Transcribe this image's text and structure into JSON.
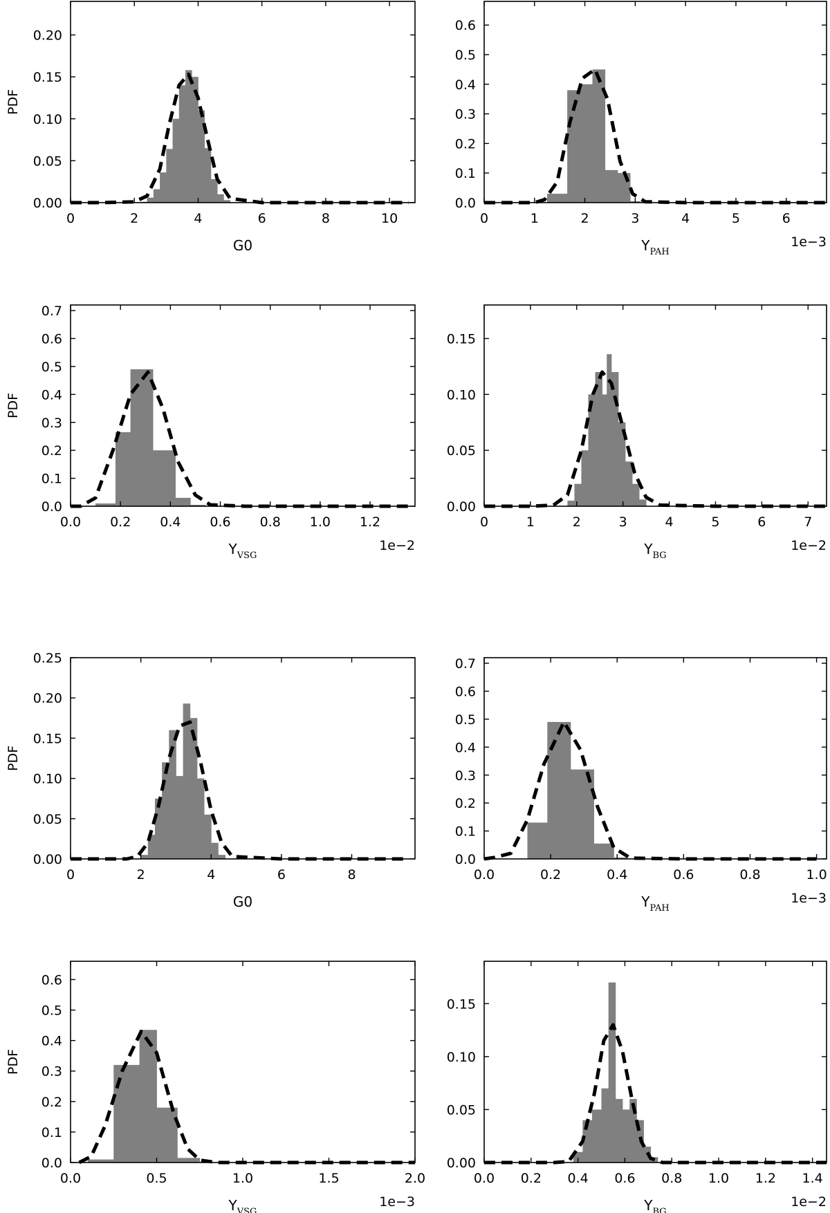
{
  "chart_data": [
    {
      "type": "histogram",
      "xlabel": "G0",
      "xlabel_sub": "",
      "ylabel": "PDF",
      "multiplier": "",
      "xlim": [
        0,
        10.8
      ],
      "ylim": [
        0,
        0.24
      ],
      "xticks": [
        0,
        2,
        4,
        6,
        8,
        10
      ],
      "xtick_labels": [
        "0",
        "2",
        "4",
        "6",
        "8",
        "10"
      ],
      "yticks": [
        0,
        0.05,
        0.1,
        0.15,
        0.2
      ],
      "ytick_labels": [
        "0.00",
        "0.05",
        "0.10",
        "0.15",
        "0.20"
      ],
      "bins": [
        [
          2.2,
          2.4,
          0.001
        ],
        [
          2.4,
          2.6,
          0.006
        ],
        [
          2.6,
          2.8,
          0.016
        ],
        [
          2.8,
          3.0,
          0.036
        ],
        [
          3.0,
          3.2,
          0.064
        ],
        [
          3.2,
          3.4,
          0.1
        ],
        [
          3.4,
          3.6,
          0.14
        ],
        [
          3.6,
          3.8,
          0.158
        ],
        [
          3.8,
          4.0,
          0.15
        ],
        [
          4.0,
          4.2,
          0.11
        ],
        [
          4.2,
          4.4,
          0.065
        ],
        [
          4.4,
          4.6,
          0.028
        ],
        [
          4.6,
          4.8,
          0.01
        ],
        [
          4.8,
          5.0,
          0.003
        ]
      ],
      "fit": {
        "x": [
          0,
          1,
          2,
          2.4,
          2.8,
          3.1,
          3.4,
          3.7,
          4.0,
          4.3,
          4.6,
          5.0,
          6,
          8,
          10.6
        ],
        "y": [
          0,
          0,
          0.001,
          0.008,
          0.04,
          0.094,
          0.14,
          0.153,
          0.125,
          0.075,
          0.028,
          0.005,
          0,
          0,
          0
        ]
      }
    },
    {
      "type": "histogram",
      "xlabel": "Y",
      "xlabel_sub": "PAH",
      "ylabel": "",
      "multiplier": "1e−3",
      "xlim": [
        0,
        6.8
      ],
      "ylim": [
        0,
        0.68
      ],
      "xticks": [
        0,
        1,
        2,
        3,
        4,
        5,
        6
      ],
      "xtick_labels": [
        "0",
        "1",
        "2",
        "3",
        "4",
        "5",
        "6"
      ],
      "yticks": [
        0,
        0.1,
        0.2,
        0.3,
        0.4,
        0.5,
        0.6
      ],
      "ytick_labels": [
        "0.0",
        "0.1",
        "0.2",
        "0.3",
        "0.4",
        "0.5",
        "0.6"
      ],
      "bins": [
        [
          1.25,
          1.65,
          0.03
        ],
        [
          1.65,
          1.9,
          0.38
        ],
        [
          1.9,
          2.15,
          0.4
        ],
        [
          2.15,
          2.4,
          0.45
        ],
        [
          2.4,
          2.65,
          0.11
        ],
        [
          2.65,
          2.9,
          0.1
        ],
        [
          2.9,
          3.1,
          0.005
        ]
      ],
      "fit": {
        "x": [
          0,
          1,
          1.2,
          1.45,
          1.7,
          1.95,
          2.2,
          2.45,
          2.7,
          2.95,
          3.2,
          4,
          6.8
        ],
        "y": [
          0,
          0,
          0.01,
          0.07,
          0.27,
          0.42,
          0.45,
          0.35,
          0.14,
          0.03,
          0.003,
          0,
          0
        ]
      }
    },
    {
      "type": "histogram",
      "xlabel": "Y",
      "xlabel_sub": "VSG",
      "ylabel": "PDF",
      "multiplier": "1e−2",
      "xlim": [
        0,
        1.38
      ],
      "ylim": [
        0,
        0.72
      ],
      "xticks": [
        0,
        0.2,
        0.4,
        0.6,
        0.8,
        1.0,
        1.2
      ],
      "xtick_labels": [
        "0.0",
        "0.2",
        "0.4",
        "0.6",
        "0.8",
        "1.0",
        "1.2"
      ],
      "yticks": [
        0,
        0.1,
        0.2,
        0.3,
        0.4,
        0.5,
        0.6,
        0.7
      ],
      "ytick_labels": [
        "0.0",
        "0.1",
        "0.2",
        "0.3",
        "0.4",
        "0.5",
        "0.6",
        "0.7"
      ],
      "bins": [
        [
          0.1,
          0.18,
          0.01
        ],
        [
          0.18,
          0.24,
          0.265
        ],
        [
          0.24,
          0.33,
          0.49
        ],
        [
          0.33,
          0.42,
          0.2
        ],
        [
          0.42,
          0.48,
          0.03
        ],
        [
          0.48,
          0.54,
          0.005
        ]
      ],
      "fit": {
        "x": [
          0,
          0.04,
          0.1,
          0.17,
          0.24,
          0.31,
          0.37,
          0.43,
          0.5,
          0.56,
          0.7,
          1.0,
          1.36
        ],
        "y": [
          0,
          0,
          0.03,
          0.2,
          0.4,
          0.48,
          0.35,
          0.16,
          0.04,
          0.005,
          0,
          0,
          0
        ]
      }
    },
    {
      "type": "histogram",
      "xlabel": "Y",
      "xlabel_sub": "BG",
      "ylabel": "",
      "multiplier": "1e−2",
      "xlim": [
        0,
        7.4
      ],
      "ylim": [
        0,
        0.18
      ],
      "xticks": [
        0,
        1,
        2,
        3,
        4,
        5,
        6,
        7
      ],
      "xtick_labels": [
        "0",
        "1",
        "2",
        "3",
        "4",
        "5",
        "6",
        "7"
      ],
      "yticks": [
        0,
        0.05,
        0.1,
        0.15
      ],
      "ytick_labels": [
        "0.00",
        "0.05",
        "0.10",
        "0.15"
      ],
      "bins": [
        [
          1.8,
          1.95,
          0.005
        ],
        [
          1.95,
          2.1,
          0.02
        ],
        [
          2.1,
          2.25,
          0.05
        ],
        [
          2.25,
          2.4,
          0.1
        ],
        [
          2.4,
          2.55,
          0.12
        ],
        [
          2.55,
          2.65,
          0.1
        ],
        [
          2.65,
          2.75,
          0.136
        ],
        [
          2.75,
          2.9,
          0.12
        ],
        [
          2.9,
          3.05,
          0.075
        ],
        [
          3.05,
          3.2,
          0.04
        ],
        [
          3.2,
          3.35,
          0.02
        ],
        [
          3.35,
          3.5,
          0.006
        ]
      ],
      "fit": {
        "x": [
          0,
          1,
          1.5,
          1.8,
          2.1,
          2.35,
          2.55,
          2.75,
          3.0,
          3.25,
          3.5,
          3.8,
          5,
          7.4
        ],
        "y": [
          0,
          0,
          0.001,
          0.01,
          0.05,
          0.1,
          0.12,
          0.11,
          0.07,
          0.03,
          0.008,
          0.001,
          0,
          0
        ]
      }
    },
    {
      "type": "histogram",
      "xlabel": "G0",
      "xlabel_sub": "",
      "ylabel": "PDF",
      "multiplier": "",
      "xlim": [
        0,
        9.8
      ],
      "ylim": [
        0,
        0.25
      ],
      "xticks": [
        0,
        2,
        4,
        6,
        8
      ],
      "xtick_labels": [
        "0",
        "2",
        "4",
        "6",
        "8"
      ],
      "yticks": [
        0,
        0.05,
        0.1,
        0.15,
        0.2,
        0.25
      ],
      "ytick_labels": [
        "0.00",
        "0.05",
        "0.10",
        "0.15",
        "0.20",
        "0.25"
      ],
      "bins": [
        [
          2.0,
          2.2,
          0.005
        ],
        [
          2.2,
          2.4,
          0.03
        ],
        [
          2.4,
          2.6,
          0.075
        ],
        [
          2.6,
          2.8,
          0.12
        ],
        [
          2.8,
          3.0,
          0.16
        ],
        [
          3.0,
          3.2,
          0.103
        ],
        [
          3.2,
          3.4,
          0.193
        ],
        [
          3.4,
          3.6,
          0.175
        ],
        [
          3.6,
          3.8,
          0.1
        ],
        [
          3.8,
          4.0,
          0.055
        ],
        [
          4.0,
          4.2,
          0.02
        ],
        [
          4.2,
          4.4,
          0.005
        ]
      ],
      "fit": {
        "x": [
          0,
          1,
          1.6,
          1.9,
          2.2,
          2.5,
          2.8,
          3.1,
          3.4,
          3.7,
          4.0,
          4.3,
          4.6,
          6,
          9.6
        ],
        "y": [
          0,
          0,
          0,
          0.003,
          0.02,
          0.065,
          0.125,
          0.165,
          0.17,
          0.12,
          0.06,
          0.02,
          0.003,
          0,
          0
        ]
      }
    },
    {
      "type": "histogram",
      "xlabel": "Y",
      "xlabel_sub": "PAH",
      "ylabel": "",
      "multiplier": "1e−3",
      "xlim": [
        0,
        1.03
      ],
      "ylim": [
        0,
        0.72
      ],
      "xticks": [
        0,
        0.2,
        0.4,
        0.6,
        0.8,
        1.0
      ],
      "xtick_labels": [
        "0.0",
        "0.2",
        "0.4",
        "0.6",
        "0.8",
        "1.0"
      ],
      "yticks": [
        0,
        0.1,
        0.2,
        0.3,
        0.4,
        0.5,
        0.6,
        0.7
      ],
      "ytick_labels": [
        "0.0",
        "0.1",
        "0.2",
        "0.3",
        "0.4",
        "0.5",
        "0.6",
        "0.7"
      ],
      "bins": [
        [
          0.13,
          0.19,
          0.13
        ],
        [
          0.19,
          0.26,
          0.49
        ],
        [
          0.26,
          0.33,
          0.32
        ],
        [
          0.33,
          0.39,
          0.055
        ],
        [
          0.39,
          0.43,
          0.005
        ]
      ],
      "fit": {
        "x": [
          0,
          0.03,
          0.08,
          0.13,
          0.18,
          0.24,
          0.29,
          0.34,
          0.39,
          0.44,
          0.6,
          1.0
        ],
        "y": [
          0,
          0.005,
          0.02,
          0.14,
          0.34,
          0.49,
          0.39,
          0.19,
          0.04,
          0.003,
          0,
          0
        ]
      }
    },
    {
      "type": "histogram",
      "xlabel": "Y",
      "xlabel_sub": "VSG",
      "ylabel": "PDF",
      "multiplier": "1e−3",
      "xlim": [
        0,
        2.0
      ],
      "ylim": [
        0,
        0.66
      ],
      "xticks": [
        0,
        0.5,
        1.0,
        1.5,
        2.0
      ],
      "xtick_labels": [
        "0.0",
        "0.5",
        "1.0",
        "1.5",
        "2.0"
      ],
      "yticks": [
        0,
        0.1,
        0.2,
        0.3,
        0.4,
        0.5,
        0.6
      ],
      "ytick_labels": [
        "0.0",
        "0.1",
        "0.2",
        "0.3",
        "0.4",
        "0.5",
        "0.6"
      ],
      "bins": [
        [
          0.1,
          0.25,
          0.01
        ],
        [
          0.25,
          0.4,
          0.32
        ],
        [
          0.4,
          0.5,
          0.435
        ],
        [
          0.5,
          0.62,
          0.18
        ],
        [
          0.62,
          0.75,
          0.015
        ]
      ],
      "fit": {
        "x": [
          0.05,
          0.12,
          0.2,
          0.3,
          0.41,
          0.5,
          0.6,
          0.68,
          0.75,
          0.85,
          1.0,
          2.0
        ],
        "y": [
          0,
          0.02,
          0.12,
          0.3,
          0.43,
          0.36,
          0.16,
          0.045,
          0.008,
          0,
          0,
          0
        ]
      }
    },
    {
      "type": "histogram",
      "xlabel": "Y",
      "xlabel_sub": "BG",
      "ylabel": "",
      "multiplier": "1e−2",
      "xlim": [
        0,
        1.46
      ],
      "ylim": [
        0,
        0.19
      ],
      "xticks": [
        0,
        0.2,
        0.4,
        0.6,
        0.8,
        1.0,
        1.2,
        1.4
      ],
      "xtick_labels": [
        "0.0",
        "0.2",
        "0.4",
        "0.6",
        "0.8",
        "1.0",
        "1.2",
        "1.4"
      ],
      "yticks": [
        0,
        0.05,
        0.1,
        0.15
      ],
      "ytick_labels": [
        "0.00",
        "0.05",
        "0.10",
        "0.15"
      ],
      "bins": [
        [
          0.38,
          0.42,
          0.01
        ],
        [
          0.42,
          0.46,
          0.04
        ],
        [
          0.46,
          0.5,
          0.05
        ],
        [
          0.5,
          0.53,
          0.07
        ],
        [
          0.53,
          0.56,
          0.17
        ],
        [
          0.56,
          0.59,
          0.06
        ],
        [
          0.59,
          0.62,
          0.05
        ],
        [
          0.62,
          0.65,
          0.06
        ],
        [
          0.65,
          0.68,
          0.04
        ],
        [
          0.68,
          0.71,
          0.015
        ],
        [
          0.71,
          0.74,
          0.005
        ]
      ],
      "fit": {
        "x": [
          0,
          0.3,
          0.36,
          0.42,
          0.47,
          0.51,
          0.55,
          0.59,
          0.63,
          0.67,
          0.71,
          0.76,
          0.9,
          1.46
        ],
        "y": [
          0,
          0,
          0.001,
          0.02,
          0.065,
          0.115,
          0.13,
          0.105,
          0.06,
          0.02,
          0.004,
          0,
          0,
          0
        ]
      }
    }
  ]
}
